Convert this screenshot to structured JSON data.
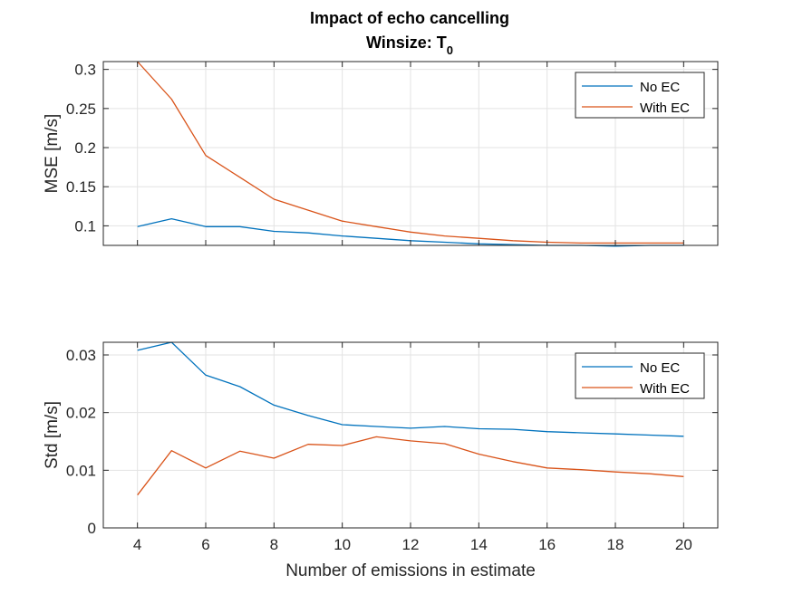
{
  "chart_data": [
    {
      "type": "line",
      "title": "Impact of echo cancelling",
      "subtitle_prefix": "Winsize: T",
      "subtitle_sub": "0",
      "xlabel": "",
      "ylabel": "MSE [m/s]",
      "xlim": [
        3,
        21
      ],
      "ylim": [
        0.075,
        0.31
      ],
      "xticks": [
        4,
        6,
        8,
        10,
        12,
        14,
        16,
        18,
        20
      ],
      "yticks": [
        0.1,
        0.15,
        0.2,
        0.25,
        0.3
      ],
      "ytick_labels": [
        "0.1",
        "0.15",
        "0.2",
        "0.25",
        "0.3"
      ],
      "x": [
        4,
        5,
        6,
        7,
        8,
        9,
        10,
        11,
        12,
        13,
        14,
        15,
        16,
        17,
        18,
        19,
        20
      ],
      "grid": true,
      "legend_position": "top-right",
      "series": [
        {
          "name": "No EC",
          "color": "#0072BD",
          "values": [
            0.099,
            0.109,
            0.099,
            0.099,
            0.093,
            0.091,
            0.087,
            0.084,
            0.081,
            0.079,
            0.077,
            0.076,
            0.075,
            0.075,
            0.074,
            0.075,
            0.075
          ]
        },
        {
          "name": "With EC",
          "color": "#D95319",
          "values": [
            0.31,
            0.262,
            0.19,
            0.162,
            0.134,
            0.12,
            0.106,
            0.099,
            0.092,
            0.087,
            0.084,
            0.081,
            0.079,
            0.078,
            0.078,
            0.078,
            0.078
          ]
        }
      ]
    },
    {
      "type": "line",
      "title": "",
      "xlabel": "Number of emissions in estimate",
      "ylabel": "Std [m/s]",
      "xlim": [
        3,
        21
      ],
      "ylim": [
        0,
        0.0322
      ],
      "xticks": [
        4,
        6,
        8,
        10,
        12,
        14,
        16,
        18,
        20
      ],
      "yticks": [
        0,
        0.01,
        0.02,
        0.03
      ],
      "ytick_labels": [
        "0",
        "0.01",
        "0.02",
        "0.03"
      ],
      "x": [
        4,
        5,
        6,
        7,
        8,
        9,
        10,
        11,
        12,
        13,
        14,
        15,
        16,
        17,
        18,
        19,
        20
      ],
      "grid": true,
      "legend_position": "top-right",
      "series": [
        {
          "name": "No EC",
          "color": "#0072BD",
          "values": [
            0.0308,
            0.0322,
            0.0265,
            0.0245,
            0.0213,
            0.0195,
            0.0179,
            0.0176,
            0.0173,
            0.0176,
            0.0172,
            0.0171,
            0.0167,
            0.0165,
            0.0163,
            0.0161,
            0.0159
          ]
        },
        {
          "name": "With EC",
          "color": "#D95319",
          "values": [
            0.0057,
            0.0134,
            0.0104,
            0.0133,
            0.0121,
            0.0145,
            0.0143,
            0.0158,
            0.0151,
            0.0146,
            0.0128,
            0.0115,
            0.0104,
            0.0101,
            0.0097,
            0.0094,
            0.0089
          ]
        }
      ]
    }
  ]
}
